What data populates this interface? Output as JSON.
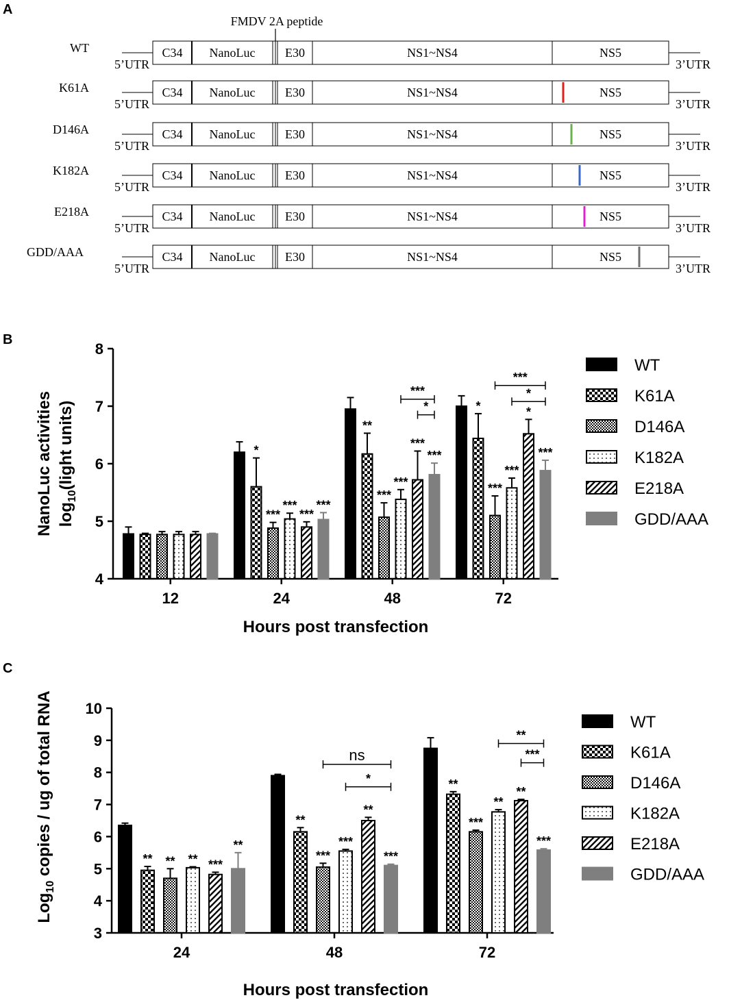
{
  "panel_a": {
    "label": "A",
    "fmdv_label": "FMDV 2A peptide",
    "utr5": "5’UTR",
    "utr3": "3’UTR",
    "segments": [
      "C34",
      "NanoLuc",
      "E30",
      "NS1~NS4",
      "NS5"
    ],
    "constructs": [
      {
        "name": "WT",
        "marker": null
      },
      {
        "name": "K61A",
        "marker": "#e0201a"
      },
      {
        "name": "D146A",
        "marker": "#6ab04c"
      },
      {
        "name": "K182A",
        "marker": "#3a66c4"
      },
      {
        "name": "E218A",
        "marker": "#e020d0"
      },
      {
        "name": "GDD/AAA",
        "marker": "#707070"
      }
    ]
  },
  "chart_data": [
    {
      "panel": "B",
      "type": "bar",
      "title": "",
      "xlabel": "Hours post transfection",
      "ylabel_line1": "NanoLuc activities",
      "ylabel_line2": "log",
      "ylabel_sub": "10",
      "ylabel_tail": "(light units)",
      "ylim": [
        4,
        8
      ],
      "yticks": [
        "4",
        "5",
        "6",
        "7",
        "8"
      ],
      "categories": [
        "12",
        "24",
        "48",
        "72"
      ],
      "legend_position": "right",
      "series": [
        {
          "name": "WT",
          "pattern": "solid",
          "values": [
            4.78,
            6.2,
            6.95,
            7.0
          ],
          "errors": [
            0.12,
            0.18,
            0.2,
            0.18
          ]
        },
        {
          "name": "K61A",
          "pattern": "checker",
          "values": [
            4.77,
            5.6,
            6.17,
            6.44
          ],
          "errors": [
            0.02,
            0.5,
            0.36,
            0.43
          ]
        },
        {
          "name": "D146A",
          "pattern": "fine",
          "values": [
            4.77,
            4.88,
            5.07,
            5.1
          ],
          "errors": [
            0.05,
            0.1,
            0.25,
            0.34
          ]
        },
        {
          "name": "K182A",
          "pattern": "dots",
          "values": [
            4.77,
            5.04,
            5.38,
            5.58
          ],
          "errors": [
            0.05,
            0.1,
            0.17,
            0.17
          ]
        },
        {
          "name": "E218A",
          "pattern": "diag",
          "values": [
            4.77,
            4.9,
            5.72,
            6.52
          ],
          "errors": [
            0.05,
            0.09,
            0.5,
            0.25
          ]
        },
        {
          "name": "GDD/AAA",
          "pattern": "gray",
          "values": [
            4.78,
            5.03,
            5.81,
            5.88
          ],
          "errors": [
            0.01,
            0.12,
            0.2,
            0.18
          ]
        }
      ],
      "annotations": [
        [
          null,
          null,
          null,
          null,
          null,
          null
        ],
        [
          null,
          "*",
          "***",
          "***",
          "***",
          "***"
        ],
        [
          null,
          "**",
          "***",
          "***",
          "***",
          "***"
        ],
        [
          null,
          "*",
          "***",
          "***",
          "*",
          "***"
        ]
      ],
      "brackets": [
        {
          "category": 2,
          "from": 3,
          "to": 5,
          "label": "***",
          "y": 7.12
        },
        {
          "category": 2,
          "from": 4,
          "to": 5,
          "label": "*",
          "y": 6.85
        },
        {
          "category": 3,
          "from": 2,
          "to": 5,
          "label": "***",
          "y": 7.36
        },
        {
          "category": 3,
          "from": 3,
          "to": 5,
          "label": "*",
          "y": 7.08
        }
      ]
    },
    {
      "panel": "C",
      "type": "bar",
      "title": "",
      "xlabel": "Hours post transfection",
      "ylabel_pre": "Log",
      "ylabel_sub": "10",
      "ylabel_tail": " copies / ug of total RNA",
      "ylim": [
        3,
        10
      ],
      "yticks": [
        "3",
        "4",
        "5",
        "6",
        "7",
        "8",
        "9",
        "10"
      ],
      "categories": [
        "24",
        "48",
        "72"
      ],
      "legend_position": "right",
      "series": [
        {
          "name": "WT",
          "pattern": "solid",
          "values": [
            6.35,
            7.9,
            8.75
          ],
          "errors": [
            0.07,
            0.04,
            0.33
          ]
        },
        {
          "name": "K61A",
          "pattern": "checker",
          "values": [
            4.95,
            6.15,
            7.32
          ],
          "errors": [
            0.12,
            0.13,
            0.08
          ]
        },
        {
          "name": "D146A",
          "pattern": "fine",
          "values": [
            4.7,
            5.05,
            6.15
          ],
          "errors": [
            0.3,
            0.12,
            0.05
          ]
        },
        {
          "name": "K182A",
          "pattern": "dots",
          "values": [
            5.03,
            5.55,
            6.77
          ],
          "errors": [
            0.03,
            0.05,
            0.07
          ]
        },
        {
          "name": "E218A",
          "pattern": "diag",
          "values": [
            4.82,
            6.5,
            7.12
          ],
          "errors": [
            0.07,
            0.1,
            0.04
          ]
        },
        {
          "name": "GDD/AAA",
          "pattern": "gray",
          "values": [
            5.0,
            5.1,
            5.58
          ],
          "errors": [
            0.5,
            0.04,
            0.04
          ]
        }
      ],
      "annotations": [
        [
          null,
          "**",
          "**",
          "**",
          "***",
          "**"
        ],
        [
          null,
          "**",
          "***",
          "***",
          "**",
          "***"
        ],
        [
          null,
          "**",
          "***",
          "**",
          "**",
          "***"
        ]
      ],
      "brackets": [
        {
          "category": 1,
          "from": 2,
          "to": 5,
          "label": "ns",
          "y": 8.25
        },
        {
          "category": 1,
          "from": 3,
          "to": 5,
          "label": "*",
          "y": 7.55
        },
        {
          "category": 2,
          "from": 3,
          "to": 5,
          "label": "**",
          "y": 8.9
        },
        {
          "category": 2,
          "from": 4,
          "to": 5,
          "label": "***",
          "y": 8.3
        }
      ]
    }
  ]
}
